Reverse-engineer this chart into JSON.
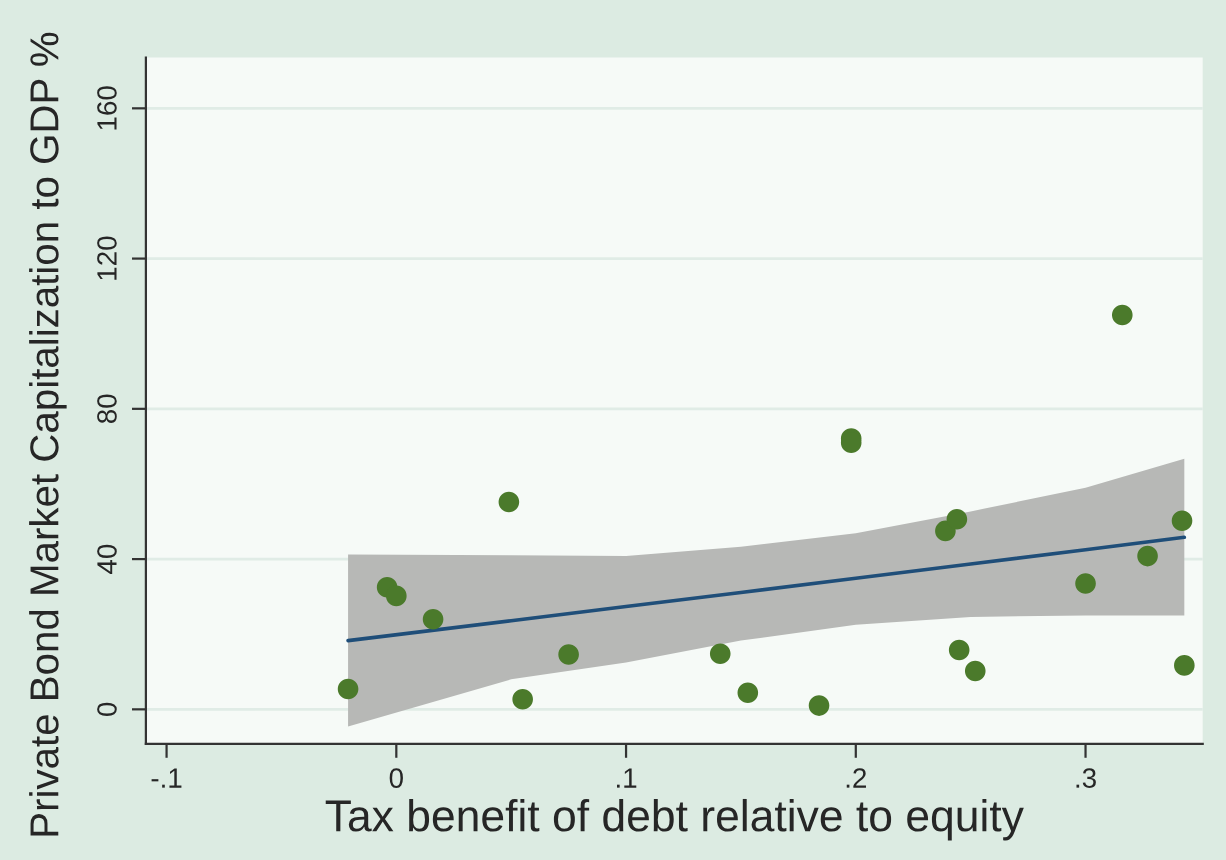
{
  "chart_data": {
    "type": "scatter",
    "xlabel": "Tax benefit of debt relative to equity",
    "ylabel": "Private Bond Market Capitalization to GDP %",
    "xlim": [
      -0.109,
      0.351
    ],
    "ylim": [
      -9.2,
      173.5
    ],
    "xticks": [
      {
        "value": -0.1,
        "label": "-.1"
      },
      0,
      {
        "value": 0.1,
        "label": ".1"
      },
      {
        "value": 0.2,
        "label": ".2"
      },
      {
        "value": 0.3,
        "label": ".3"
      }
    ],
    "yticks": [
      0,
      40,
      80,
      120,
      160
    ],
    "grid": "y",
    "marker": "circle",
    "series": [
      {
        "color": "#4b7a2b",
        "x": [
          -0.021,
          -0.004,
          0.0,
          0.016,
          0.049,
          0.055,
          0.075,
          0.141,
          0.153,
          0.184,
          0.198,
          0.198,
          0.239,
          0.244,
          0.245,
          0.252,
          0.3,
          0.316,
          0.327,
          0.342,
          0.343
        ],
        "values": [
          5.4,
          32.5,
          30.2,
          24,
          55.2,
          2.7,
          14.6,
          14.8,
          4.4,
          1.0,
          72.1,
          71,
          47.5,
          50.6,
          15.8,
          10.2,
          33.5,
          105,
          40.8,
          50.2,
          11.7
        ]
      },
      {
        "type": "line",
        "color": "#1f4e79",
        "line_style": "solid",
        "marker": "none",
        "x": [
          -0.021,
          0.05,
          0.1,
          0.15,
          0.2,
          0.25,
          0.3,
          0.343
        ],
        "values": [
          18.3,
          23.6,
          27.4,
          31.1,
          34.9,
          38.7,
          42.5,
          45.8
        ],
        "lower": [
          -4.6,
          8,
          12.5,
          18.3,
          22.5,
          24.6,
          25,
          25
        ],
        "upper": [
          41.2,
          41,
          40.8,
          43.3,
          46.9,
          52.7,
          59,
          66.7
        ]
      }
    ]
  }
}
